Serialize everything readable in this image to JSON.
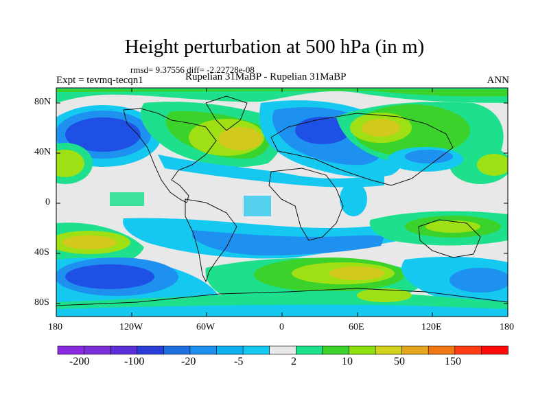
{
  "header": {
    "title": "Height perturbation at 500 hPa (in m)",
    "stats": "rmsd= 9.37556 diff= -2.22728e-08",
    "experiment": "Expt = tevmq-tecqn1",
    "comparison": "Rupelian  31MaBP - Rupelian  31MaBP",
    "season": "ANN"
  },
  "axes": {
    "lat_labels": [
      "80N",
      "40N",
      "0",
      "40S",
      "80S"
    ],
    "lon_labels": [
      "180",
      "120W",
      "60W",
      "0",
      "60E",
      "120E",
      "180"
    ]
  },
  "colorbar": {
    "labels": [
      "-200",
      "-100",
      "-20",
      "-5",
      "2",
      "10",
      "50",
      "150"
    ],
    "colors": [
      "#8a2be2",
      "#7b2fd8",
      "#5a2fd8",
      "#2a3fd8",
      "#1e6fe0",
      "#1e90f0",
      "#0fb0f0",
      "#14c8f0",
      "#e8e8e8",
      "#1ee08c",
      "#3cd22c",
      "#8ee010",
      "#d2d21e",
      "#e6a51e",
      "#f07814",
      "#ff3c14",
      "#ff0a0a"
    ]
  },
  "palette": {
    "deep_blue": "#1e50e6",
    "blue": "#1e8cf0",
    "light_blue": "#14c8f0",
    "neutral": "#e8e8e8",
    "teal": "#1ee08c",
    "green": "#3cd22c",
    "yellow_green": "#9ee014",
    "yellow": "#d2c81e"
  }
}
